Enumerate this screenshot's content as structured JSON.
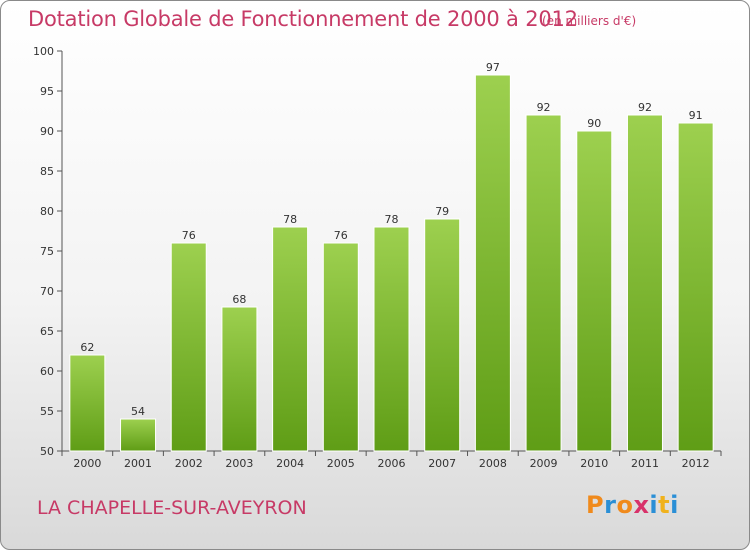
{
  "header": {
    "title": "Dotation Globale de Fonctionnement de 2000 à 2012",
    "subtitle": "(en milliers d'€)"
  },
  "footer": {
    "commune": "LA CHAPELLE-SUR-AVEYRON",
    "logo_text": "Proxiti"
  },
  "colors": {
    "title": "#c73a66",
    "bar_light": "#9dd04f",
    "bar_dark": "#5f9d16",
    "logo_letters": [
      "#f08a1c",
      "#2a8fd6",
      "#f08a1c",
      "#d8326a",
      "#2a8fd6",
      "#f0b21c",
      "#2a8fd6"
    ]
  },
  "chart_data": {
    "type": "bar",
    "title": "Dotation Globale de Fonctionnement de 2000 à 2012",
    "subtitle": "(en milliers d'€)",
    "categories": [
      "2000",
      "2001",
      "2002",
      "2003",
      "2004",
      "2005",
      "2006",
      "2007",
      "2008",
      "2009",
      "2010",
      "2011",
      "2012"
    ],
    "values": [
      62,
      54,
      76,
      68,
      78,
      76,
      78,
      79,
      97,
      92,
      90,
      92,
      91
    ],
    "xlabel": "",
    "ylabel": "",
    "ylim": [
      50,
      100
    ],
    "yticks": [
      50,
      55,
      60,
      65,
      70,
      75,
      80,
      85,
      90,
      95,
      100
    ],
    "grid": false,
    "legend": "none"
  }
}
